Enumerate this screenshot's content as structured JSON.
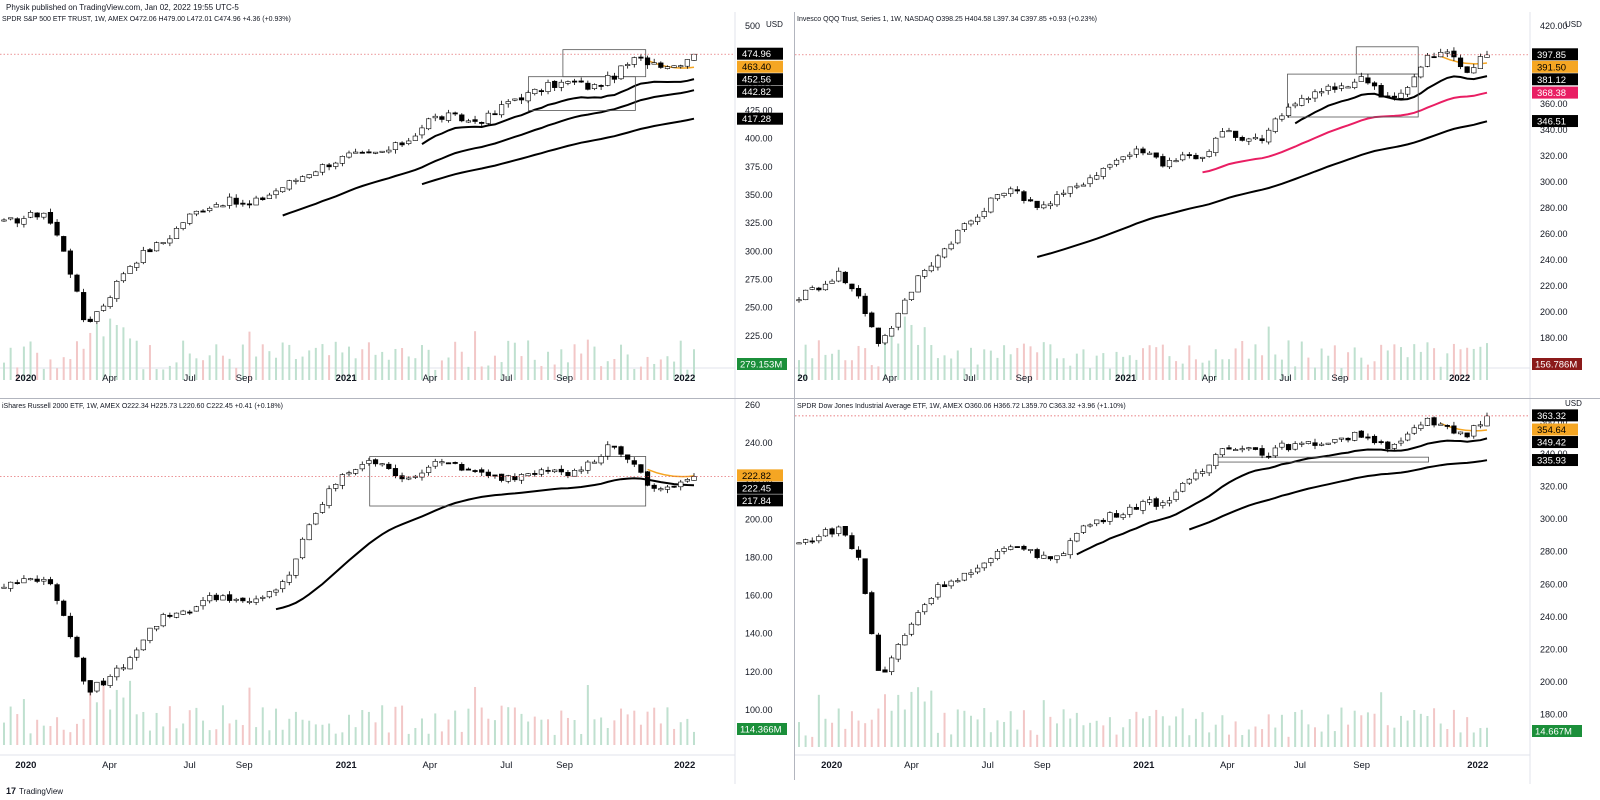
{
  "header": {
    "text": "Physik published on TradingView.com, Jan 02, 2022 19:55 UTC-5"
  },
  "footer": {
    "logo": "17",
    "text": "TradingView"
  },
  "colors": {
    "up": "#ffffff",
    "down": "#000000",
    "wick": "#000000",
    "ema_fast": "#f5a623",
    "ema_mid": "#000000",
    "ema_red": "#e91e63",
    "ema_slow": "#000000",
    "vol_up": "#bfe0cf",
    "vol_down": "#f2c7c7",
    "price_line": "#e0555a",
    "tag_black": "#000000",
    "tag_orange": "#f5a623",
    "tag_pink": "#e91e63",
    "tag_green": "#1b8f3a",
    "tag_maroon": "#8b1a1a"
  },
  "chart_data": [
    {
      "id": "spy",
      "type": "candlestick",
      "title": "SPDR S&P 500 ETF TRUST, 1W, AMEX O472.06 H479.00 L472.01 C474.96 +4.36 (+0.93%)",
      "currency": "USD",
      "ylim": [
        200,
        500
      ],
      "yticks": [
        {
          "v": 500,
          "label": "500"
        },
        {
          "v": 475,
          "label": "475.00"
        },
        {
          "v": 450,
          "label": "450.00"
        },
        {
          "v": 425,
          "label": "425.00"
        },
        {
          "v": 400,
          "label": "400.00"
        },
        {
          "v": 375,
          "label": "375.00"
        },
        {
          "v": 350,
          "label": "350.00"
        },
        {
          "v": 325,
          "label": "325.00"
        },
        {
          "v": 300,
          "label": "300.00"
        },
        {
          "v": 275,
          "label": "275.00"
        },
        {
          "v": 250,
          "label": "250.00"
        },
        {
          "v": 225,
          "label": "225.00"
        },
        {
          "v": 200,
          "label": "200.00"
        }
      ],
      "xticks": [
        {
          "t": 0.03,
          "label": "2020",
          "bold": true
        },
        {
          "t": 0.145,
          "label": "Apr"
        },
        {
          "t": 0.255,
          "label": "Jul"
        },
        {
          "t": 0.33,
          "label": "Sep"
        },
        {
          "t": 0.47,
          "label": "2021",
          "bold": true
        },
        {
          "t": 0.585,
          "label": "Apr"
        },
        {
          "t": 0.69,
          "label": "Jul"
        },
        {
          "t": 0.77,
          "label": "Sep"
        },
        {
          "t": 0.935,
          "label": "2022",
          "bold": true
        }
      ],
      "key_prices": [
        325,
        330,
        335,
        300,
        235,
        255,
        285,
        300,
        310,
        330,
        340,
        345,
        340,
        350,
        360,
        370,
        378,
        385,
        385,
        390,
        400,
        418,
        420,
        415,
        420,
        435,
        440,
        448,
        450,
        445,
        455,
        470,
        468,
        465,
        475
      ],
      "last": 474.96,
      "tags": [
        {
          "label": "474.96",
          "v": 474.96,
          "color": "tag_black"
        },
        {
          "label": "463.40",
          "v": 463.4,
          "color": "tag_orange"
        },
        {
          "label": "452.56",
          "v": 452.56,
          "color": "tag_black"
        },
        {
          "label": "442.82",
          "v": 442.82,
          "color": "tag_black"
        },
        {
          "label": "417.28",
          "v": 417.28,
          "color": "tag_black"
        }
      ],
      "volume_label": "279.153M",
      "volume_color": "tag_green",
      "emas": [
        {
          "color": "ema_mid",
          "from": 0.6,
          "end": 452.56,
          "len": 10
        },
        {
          "color": "ema_slow",
          "from": 0.395,
          "end": 442.82,
          "len": 25
        },
        {
          "color": "ema_slow",
          "from": 0.6,
          "end": 417.28,
          "len": 50
        }
      ],
      "ranges": [
        {
          "from": 0.81,
          "to": 0.93,
          "hi": 479,
          "lo": 455
        },
        {
          "from": 0.76,
          "to": 0.915,
          "hi": 455,
          "lo": 425
        }
      ]
    },
    {
      "id": "qqq",
      "type": "candlestick",
      "title": "Invesco QQQ Trust, Series 1, 1W, NASDAQ O398.25 H404.58 L397.34 C397.85 +0.93 (+0.23%)",
      "currency": "USD",
      "ylim": [
        160,
        420
      ],
      "yticks": [
        {
          "v": 420,
          "label": "420.00"
        },
        {
          "v": 400,
          "label": "400.00"
        },
        {
          "v": 380,
          "label": "380.00"
        },
        {
          "v": 360,
          "label": "360.00"
        },
        {
          "v": 340,
          "label": "340.00"
        },
        {
          "v": 320,
          "label": "320.00"
        },
        {
          "v": 300,
          "label": "300.00"
        },
        {
          "v": 280,
          "label": "280.00"
        },
        {
          "v": 260,
          "label": "260.00"
        },
        {
          "v": 240,
          "label": "240.00"
        },
        {
          "v": 220,
          "label": "220.00"
        },
        {
          "v": 200,
          "label": "200.00"
        },
        {
          "v": 180,
          "label": "180.00"
        }
      ],
      "xticks": [
        {
          "t": 0.005,
          "label": "20",
          "bold": true
        },
        {
          "t": 0.125,
          "label": "Apr"
        },
        {
          "t": 0.235,
          "label": "Jul"
        },
        {
          "t": 0.31,
          "label": "Sep"
        },
        {
          "t": 0.45,
          "label": "2021",
          "bold": true
        },
        {
          "t": 0.565,
          "label": "Apr"
        },
        {
          "t": 0.67,
          "label": "Jul"
        },
        {
          "t": 0.745,
          "label": "Sep"
        },
        {
          "t": 0.91,
          "label": "2022",
          "bold": true
        }
      ],
      "key_prices": [
        212,
        220,
        230,
        210,
        175,
        200,
        230,
        245,
        265,
        275,
        295,
        290,
        280,
        290,
        300,
        310,
        320,
        325,
        315,
        320,
        320,
        340,
        330,
        335,
        355,
        365,
        370,
        375,
        380,
        365,
        370,
        395,
        400,
        385,
        398
      ],
      "last": 397.85,
      "tags": [
        {
          "label": "397.85",
          "v": 397.85,
          "color": "tag_black"
        },
        {
          "label": "391.50",
          "v": 391.5,
          "color": "tag_orange"
        },
        {
          "label": "381.12",
          "v": 381.12,
          "color": "tag_black"
        },
        {
          "label": "368.38",
          "v": 368.38,
          "color": "tag_pink"
        },
        {
          "label": "346.51",
          "v": 346.51,
          "color": "tag_black"
        }
      ],
      "volume_label": "156.786M",
      "volume_color": "tag_maroon",
      "emas": [
        {
          "color": "ema_mid",
          "from": 0.72,
          "end": 381.12,
          "len": 10
        },
        {
          "color": "ema_red",
          "from": 0.58,
          "end": 368.38,
          "len": 25
        },
        {
          "color": "ema_slow",
          "from": 0.345,
          "end": 346.51,
          "len": 50
        }
      ],
      "ranges": [
        {
          "from": 0.81,
          "to": 0.9,
          "hi": 404,
          "lo": 383
        },
        {
          "from": 0.71,
          "to": 0.9,
          "hi": 383,
          "lo": 350
        }
      ]
    },
    {
      "id": "iwm",
      "type": "candlestick",
      "title": "iShares Russell 2000 ETF, 1W, AMEX O222.34 H225.73 L220.60 C222.45 +0.41 (+0.18%)",
      "currency": "USD",
      "ylim": [
        90,
        260
      ],
      "yticks": [
        {
          "v": 260,
          "label": "260"
        },
        {
          "v": 240,
          "label": "240.00"
        },
        {
          "v": 220,
          "label": "220.00"
        },
        {
          "v": 200,
          "label": "200.00"
        },
        {
          "v": 180,
          "label": "180.00"
        },
        {
          "v": 160,
          "label": "160.00"
        },
        {
          "v": 140,
          "label": "140.00"
        },
        {
          "v": 120,
          "label": "120.00"
        },
        {
          "v": 100,
          "label": "100.00"
        }
      ],
      "xticks": [
        {
          "t": 0.03,
          "label": "2020",
          "bold": true
        },
        {
          "t": 0.145,
          "label": "Apr"
        },
        {
          "t": 0.255,
          "label": "Jul"
        },
        {
          "t": 0.33,
          "label": "Sep"
        },
        {
          "t": 0.47,
          "label": "2021",
          "bold": true
        },
        {
          "t": 0.585,
          "label": "Apr"
        },
        {
          "t": 0.69,
          "label": "Jul"
        },
        {
          "t": 0.77,
          "label": "Sep"
        },
        {
          "t": 0.935,
          "label": "2022",
          "bold": true
        }
      ],
      "key_prices": [
        165,
        168,
        170,
        150,
        110,
        115,
        125,
        140,
        150,
        152,
        158,
        160,
        155,
        160,
        170,
        195,
        215,
        225,
        232,
        225,
        222,
        228,
        230,
        225,
        222,
        222,
        225,
        228,
        224,
        230,
        240,
        228,
        215,
        218,
        222
      ],
      "last": 222.45,
      "tags": [
        {
          "label": "222.82",
          "v": 222.82,
          "color": "tag_orange"
        },
        {
          "label": "222.45",
          "v": 222.45,
          "color": "tag_black"
        },
        {
          "label": "217.84",
          "v": 217.84,
          "color": "tag_black"
        }
      ],
      "volume_label": "114.366M",
      "volume_color": "tag_green",
      "emas": [
        {
          "color": "ema_slow",
          "from": 0.39,
          "end": 217.84,
          "len": 30
        }
      ],
      "ranges": [
        {
          "from": 0.53,
          "to": 0.93,
          "hi": 233,
          "lo": 207
        }
      ]
    },
    {
      "id": "dia",
      "type": "candlestick",
      "title": "SPDR Dow Jones Industrial Average ETF, 1W, AMEX O360.06 H366.72 L359.70 C363.32 +3.96 (+1.10%)",
      "currency": "USD",
      "ylim": [
        170,
        370
      ],
      "yticks": [
        {
          "v": 360,
          "label": "360.00"
        },
        {
          "v": 340,
          "label": "340.00"
        },
        {
          "v": 320,
          "label": "320.00"
        },
        {
          "v": 300,
          "label": "300.00"
        },
        {
          "v": 280,
          "label": "280.00"
        },
        {
          "v": 260,
          "label": "260.00"
        },
        {
          "v": 240,
          "label": "240.00"
        },
        {
          "v": 220,
          "label": "220.00"
        },
        {
          "v": 200,
          "label": "200.00"
        },
        {
          "v": 180,
          "label": "180.00"
        }
      ],
      "xticks": [
        {
          "t": 0.045,
          "label": "2020",
          "bold": true
        },
        {
          "t": 0.155,
          "label": "Apr"
        },
        {
          "t": 0.26,
          "label": "Jul"
        },
        {
          "t": 0.335,
          "label": "Sep"
        },
        {
          "t": 0.475,
          "label": "2021",
          "bold": true
        },
        {
          "t": 0.59,
          "label": "Apr"
        },
        {
          "t": 0.69,
          "label": "Jul"
        },
        {
          "t": 0.775,
          "label": "Sep"
        },
        {
          "t": 0.935,
          "label": "2022",
          "bold": true
        }
      ],
      "key_prices": [
        285,
        290,
        295,
        275,
        200,
        225,
        245,
        260,
        265,
        270,
        280,
        285,
        275,
        280,
        295,
        300,
        305,
        310,
        310,
        320,
        330,
        345,
        345,
        340,
        345,
        345,
        348,
        350,
        352,
        345,
        350,
        360,
        355,
        352,
        363
      ],
      "last": 363.32,
      "tags": [
        {
          "label": "363.32",
          "v": 363.32,
          "color": "tag_black"
        },
        {
          "label": "354.64",
          "v": 354.64,
          "color": "tag_orange"
        },
        {
          "label": "349.42",
          "v": 349.42,
          "color": "tag_black"
        },
        {
          "label": "335.93",
          "v": 335.93,
          "color": "tag_black"
        }
      ],
      "volume_label": "14.667M",
      "volume_color": "tag_green",
      "emas": [
        {
          "color": "ema_mid",
          "from": 0.395,
          "end": 349.42,
          "len": 15
        },
        {
          "color": "ema_slow",
          "from": 0.56,
          "end": 335.93,
          "len": 40
        }
      ],
      "ranges": [
        {
          "from": 0.605,
          "to": 0.915,
          "hi": 338,
          "lo": 335
        }
      ]
    }
  ]
}
